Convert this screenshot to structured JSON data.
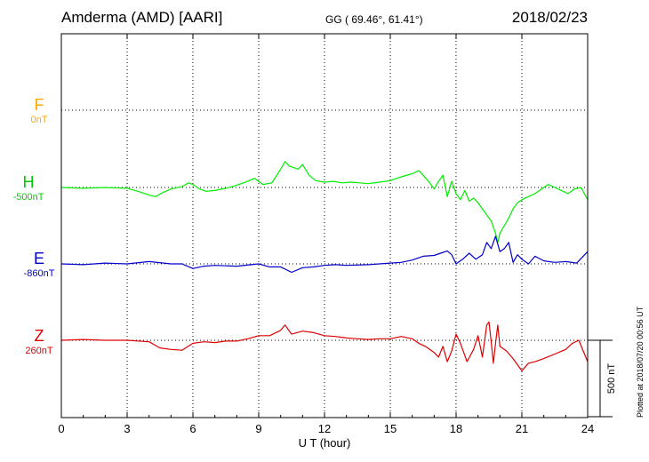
{
  "header": {
    "title": "Amderma (AMD)  [AARI]",
    "coordinates": "GG ( 69.46°,  61.41°)",
    "date": "2018/02/23"
  },
  "side_note": "Plotted at 2018/07/20 00:56 UT",
  "colors": {
    "F": "#ffa500",
    "H": "#00ee00",
    "E": "#0000cc",
    "Z": "#dd0000"
  },
  "chart_data": {
    "type": "line",
    "title": "Amderma (AMD)  [AARI]",
    "xlabel": "U T (hour)",
    "xlim": [
      0,
      24
    ],
    "x_ticks": [
      "0",
      "3",
      "6",
      "9",
      "12",
      "15",
      "18",
      "21",
      "24"
    ],
    "scale_bar": {
      "label": "500 nT",
      "value_nT": 500
    },
    "grid": true,
    "series": [
      {
        "name": "F",
        "baseline_label": "0nT",
        "x": [],
        "y": []
      },
      {
        "name": "H",
        "baseline_label": "-500nT",
        "x": [
          0,
          1,
          2,
          3,
          3.5,
          4,
          4.3,
          4.6,
          5,
          5.5,
          5.8,
          6,
          6.3,
          6.6,
          7,
          7.5,
          7.8,
          8.1,
          8.5,
          8.8,
          9.2,
          9.6,
          10,
          10.2,
          10.4,
          10.8,
          11,
          11.3,
          11.6,
          12,
          12.4,
          12.8,
          13.2,
          13.6,
          14,
          14.5,
          15,
          15.5,
          16,
          16.3,
          16.5,
          16.8,
          17,
          17.2,
          17.4,
          17.6,
          17.8,
          18,
          18.2,
          18.4,
          18.6,
          18.8,
          19,
          19.2,
          19.4,
          19.6,
          19.7,
          19.8,
          19.9,
          20,
          20.2,
          20.4,
          20.6,
          20.8,
          21,
          21.3,
          21.6,
          21.9,
          22.2,
          22.5,
          22.8,
          23.1,
          23.4,
          23.7,
          24
        ],
        "y": [
          -500,
          -505,
          -500,
          -505,
          -525,
          -550,
          -560,
          -535,
          -510,
          -495,
          -470,
          -480,
          -510,
          -525,
          -520,
          -505,
          -495,
          -480,
          -460,
          -440,
          -480,
          -470,
          -380,
          -330,
          -360,
          -380,
          -350,
          -420,
          -455,
          -465,
          -460,
          -470,
          -465,
          -470,
          -475,
          -465,
          -455,
          -430,
          -410,
          -390,
          -420,
          -470,
          -510,
          -460,
          -420,
          -560,
          -460,
          -540,
          -580,
          -520,
          -590,
          -570,
          -600,
          -640,
          -680,
          -720,
          -760,
          -800,
          -860,
          -800,
          -750,
          -700,
          -640,
          -600,
          -580,
          -560,
          -540,
          -510,
          -480,
          -500,
          -520,
          -540,
          -510,
          -500,
          -580
        ]
      },
      {
        "name": "E",
        "baseline_label": "-860nT",
        "x": [
          0,
          1,
          2,
          3,
          4,
          5,
          5.5,
          6,
          6.5,
          7,
          8,
          9,
          9.5,
          10,
          10.5,
          11,
          11.5,
          12,
          12.5,
          13,
          14,
          15,
          15.5,
          16,
          16.5,
          17,
          17.3,
          17.6,
          17.8,
          18,
          18.3,
          18.6,
          18.9,
          19.2,
          19.4,
          19.6,
          19.8,
          20,
          20.2,
          20.4,
          20.6,
          20.8,
          21,
          21.3,
          21.6,
          22,
          22.5,
          23,
          23.5,
          24
        ],
        "y": [
          -860,
          -865,
          -855,
          -860,
          -845,
          -860,
          -860,
          -890,
          -875,
          -870,
          -875,
          -860,
          -880,
          -880,
          -915,
          -885,
          -880,
          -870,
          -865,
          -870,
          -865,
          -855,
          -850,
          -835,
          -810,
          -805,
          -790,
          -775,
          -800,
          -860,
          -830,
          -790,
          -830,
          -800,
          -720,
          -760,
          -680,
          -780,
          -760,
          -720,
          -850,
          -800,
          -830,
          -860,
          -810,
          -840,
          -850,
          -845,
          -855,
          -780
        ]
      },
      {
        "name": "Z",
        "baseline_label": "260nT",
        "x": [
          0,
          1,
          2,
          3,
          4,
          4.5,
          5,
          5.5,
          6,
          6.5,
          7,
          7.5,
          8,
          8.5,
          9,
          9.5,
          10,
          10.2,
          10.5,
          11,
          11.5,
          12,
          12.5,
          13,
          13.5,
          14,
          14.5,
          15,
          15.5,
          16,
          16.3,
          16.6,
          17,
          17.2,
          17.4,
          17.6,
          17.8,
          18,
          18.2,
          18.5,
          18.8,
          19,
          19.2,
          19.4,
          19.5,
          19.6,
          19.7,
          19.8,
          19.9,
          20,
          20.3,
          20.6,
          21,
          21.3,
          21.6,
          22,
          22.5,
          23,
          23.3,
          23.6,
          24
        ],
        "y": [
          260,
          265,
          260,
          260,
          250,
          210,
          200,
          195,
          240,
          250,
          245,
          255,
          255,
          270,
          290,
          290,
          325,
          360,
          300,
          320,
          310,
          290,
          285,
          275,
          270,
          265,
          270,
          270,
          285,
          270,
          240,
          220,
          180,
          150,
          220,
          120,
          190,
          300,
          240,
          120,
          200,
          290,
          150,
          360,
          380,
          250,
          110,
          240,
          360,
          220,
          190,
          140,
          60,
          110,
          120,
          140,
          170,
          200,
          240,
          260,
          120
        ]
      }
    ]
  }
}
